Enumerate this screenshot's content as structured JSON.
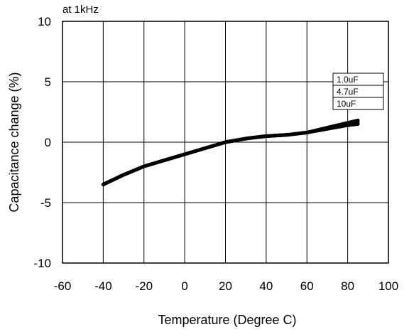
{
  "chart_data": {
    "type": "line",
    "title": "",
    "note": "at 1kHz",
    "xlabel": "Temperature (Degree C)",
    "ylabel": "Capacitance change (%)",
    "xlim": [
      -60,
      100
    ],
    "ylim": [
      -10,
      10
    ],
    "x_ticks": [
      -60,
      -40,
      -20,
      0,
      20,
      40,
      60,
      80,
      100
    ],
    "y_ticks": [
      -10,
      -5,
      0,
      5,
      10
    ],
    "grid": true,
    "legend_position": "top-right",
    "line_color": "#000000",
    "series": [
      {
        "name": "1.0uF",
        "x": [
          -40,
          -30,
          -20,
          -10,
          0,
          10,
          20,
          30,
          40,
          50,
          60,
          70,
          80,
          85
        ],
        "y": [
          -3.5,
          -2.7,
          -2.0,
          -1.5,
          -1.0,
          -0.5,
          0.0,
          0.3,
          0.5,
          0.6,
          0.8,
          1.1,
          1.4,
          1.5
        ]
      },
      {
        "name": "4.7uF",
        "x": [
          -40,
          -30,
          -20,
          -10,
          0,
          10,
          20,
          30,
          40,
          50,
          60,
          70,
          80,
          85
        ],
        "y": [
          -3.5,
          -2.7,
          -2.0,
          -1.5,
          -1.0,
          -0.5,
          0.0,
          0.3,
          0.5,
          0.6,
          0.8,
          1.15,
          1.5,
          1.65
        ]
      },
      {
        "name": "10uF",
        "x": [
          -40,
          -30,
          -20,
          -10,
          0,
          10,
          20,
          30,
          40,
          50,
          60,
          70,
          80,
          85
        ],
        "y": [
          -3.5,
          -2.7,
          -2.0,
          -1.5,
          -1.0,
          -0.5,
          0.0,
          0.3,
          0.5,
          0.6,
          0.8,
          1.2,
          1.6,
          1.8
        ]
      }
    ]
  }
}
